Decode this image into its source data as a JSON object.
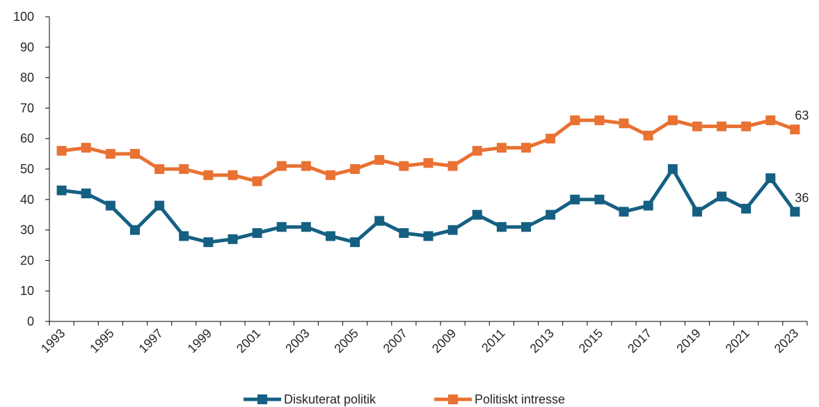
{
  "chart_data": {
    "type": "line",
    "title": "",
    "xlabel": "",
    "ylabel": "",
    "ylim": [
      0,
      100
    ],
    "yticks": [
      0,
      10,
      20,
      30,
      40,
      50,
      60,
      70,
      80,
      90,
      100
    ],
    "x": [
      1993,
      1994,
      1995,
      1996,
      1997,
      1998,
      1999,
      2000,
      2001,
      2002,
      2003,
      2004,
      2005,
      2006,
      2007,
      2008,
      2009,
      2010,
      2011,
      2012,
      2013,
      2014,
      2015,
      2016,
      2017,
      2018,
      2019,
      2020,
      2021,
      2022,
      2023
    ],
    "xtick_labels": [
      "1993",
      "1995",
      "1997",
      "1999",
      "2001",
      "2003",
      "2005",
      "2007",
      "2009",
      "2011",
      "2013",
      "2015",
      "2017",
      "2019",
      "2021",
      "2023"
    ],
    "grid": false,
    "legend_position": "bottom",
    "series": [
      {
        "name": "Diskuterat politik",
        "color": "#156082",
        "values": [
          43,
          42,
          38,
          30,
          38,
          28,
          26,
          27,
          29,
          31,
          31,
          28,
          26,
          33,
          29,
          28,
          30,
          35,
          31,
          31,
          35,
          40,
          40,
          36,
          38,
          50,
          36,
          41,
          37,
          47,
          36
        ],
        "end_label": "36"
      },
      {
        "name": "Politiskt intresse",
        "color": "#E97132",
        "values": [
          56,
          57,
          55,
          55,
          50,
          50,
          48,
          48,
          46,
          51,
          51,
          48,
          50,
          53,
          51,
          52,
          51,
          56,
          57,
          57,
          60,
          66,
          66,
          65,
          61,
          66,
          64,
          64,
          64,
          66,
          63
        ],
        "end_label": "63"
      }
    ]
  }
}
